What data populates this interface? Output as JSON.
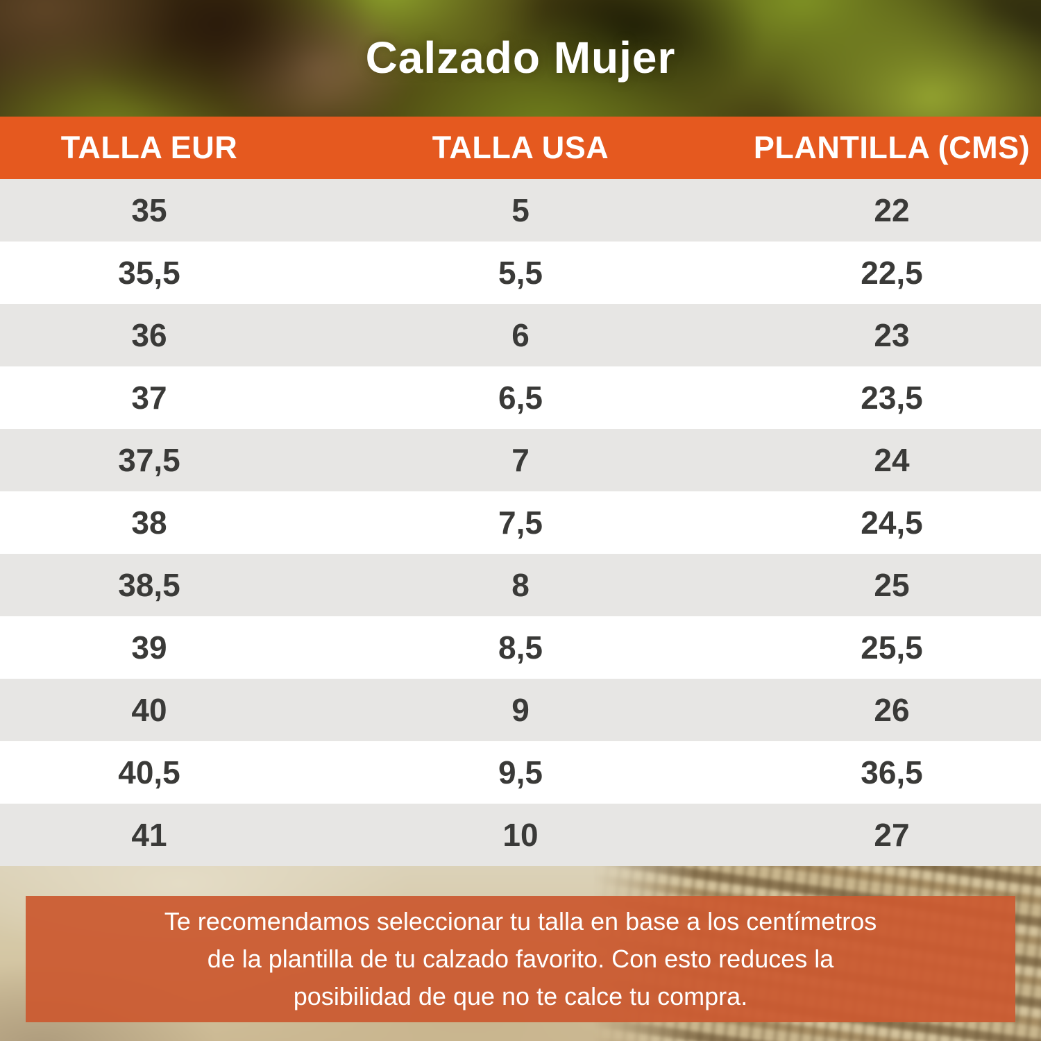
{
  "title": "Calzado Mujer",
  "chart_data": {
    "type": "table",
    "title": "Calzado Mujer",
    "columns": [
      "TALLA EUR",
      "TALLA USA",
      "PLANTILLA (CMS)"
    ],
    "rows": [
      [
        "35",
        "5",
        "22"
      ],
      [
        "35,5",
        "5,5",
        "22,5"
      ],
      [
        "36",
        "6",
        "23"
      ],
      [
        "37",
        "6,5",
        "23,5"
      ],
      [
        "37,5",
        "7",
        "24"
      ],
      [
        "38",
        "7,5",
        "24,5"
      ],
      [
        "38,5",
        "8",
        "25"
      ],
      [
        "39",
        "8,5",
        "25,5"
      ],
      [
        "40",
        "9",
        "26"
      ],
      [
        "40,5",
        "9,5",
        "36,5"
      ],
      [
        "41",
        "10",
        "27"
      ]
    ]
  },
  "footer": {
    "lines": [
      "Te recomendamos seleccionar tu talla en base a los centímetros",
      "de la plantilla de tu calzado favorito. Con esto reduces la",
      "posibilidad de que no te calce tu compra."
    ]
  },
  "colors": {
    "header_orange": "#E5591F",
    "footer_orange": "#CB5A31",
    "row_alt_gray": "#E7E6E4",
    "row_white": "#FFFFFF",
    "cell_text": "#3A3A38",
    "header_text": "#FFFFFF"
  }
}
